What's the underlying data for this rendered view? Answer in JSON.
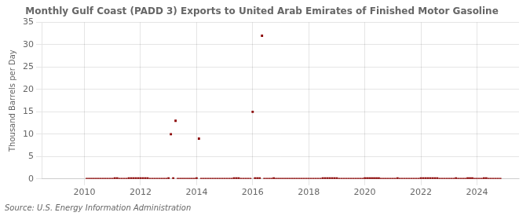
{
  "chart_data": {
    "type": "scatter",
    "title": "Monthly Gulf Coast (PADD 3) Exports to United Arab Emirates of Finished Motor Gasoline",
    "ylabel": "Thousand Barrels per Day",
    "annotations": [
      "Source: U.S. Energy Information Administration"
    ],
    "color": "#8b0000",
    "marker": "square",
    "grid": true,
    "xlim": [
      2008.5,
      2025.5
    ],
    "xticks": [
      2010,
      2012,
      2014,
      2016,
      2018,
      2020,
      2022,
      2024
    ],
    "ylim": [
      0,
      35
    ],
    "yticks": [
      0,
      5,
      10,
      15,
      20,
      25,
      30,
      35
    ],
    "x": [
      2010.083,
      2010.167,
      2010.25,
      2010.333,
      2010.417,
      2010.5,
      2010.583,
      2010.667,
      2010.75,
      2010.833,
      2010.917,
      2011.0,
      2011.083,
      2011.167,
      2011.25,
      2011.333,
      2011.417,
      2011.5,
      2011.583,
      2011.667,
      2011.75,
      2011.833,
      2011.917,
      2012.0,
      2012.083,
      2012.167,
      2012.25,
      2012.333,
      2012.417,
      2012.5,
      2012.583,
      2012.667,
      2012.75,
      2012.833,
      2012.917,
      2013.0,
      2013.083,
      2013.167,
      2013.25,
      2013.333,
      2013.417,
      2013.5,
      2013.583,
      2013.667,
      2013.75,
      2013.833,
      2013.917,
      2014.0,
      2014.083,
      2014.167,
      2014.25,
      2014.333,
      2014.417,
      2014.5,
      2014.583,
      2014.667,
      2014.75,
      2014.833,
      2014.917,
      2015.0,
      2015.083,
      2015.167,
      2015.25,
      2015.333,
      2015.417,
      2015.5,
      2015.583,
      2015.667,
      2015.75,
      2015.833,
      2015.917,
      2016.0,
      2016.083,
      2016.167,
      2016.25,
      2016.333,
      2016.417,
      2016.5,
      2016.583,
      2016.667,
      2016.75,
      2016.833,
      2016.917,
      2017.0,
      2017.083,
      2017.167,
      2017.25,
      2017.333,
      2017.417,
      2017.5,
      2017.583,
      2017.667,
      2017.75,
      2017.833,
      2017.917,
      2018.0,
      2018.083,
      2018.167,
      2018.25,
      2018.333,
      2018.417,
      2018.5,
      2018.583,
      2018.667,
      2018.75,
      2018.833,
      2018.917,
      2019.0,
      2019.083,
      2019.167,
      2019.25,
      2019.333,
      2019.417,
      2019.5,
      2019.583,
      2019.667,
      2019.75,
      2019.833,
      2019.917,
      2020.0,
      2020.083,
      2020.167,
      2020.25,
      2020.333,
      2020.417,
      2020.5,
      2020.583,
      2020.667,
      2020.75,
      2020.833,
      2020.917,
      2021.0,
      2021.083,
      2021.167,
      2021.25,
      2021.333,
      2021.417,
      2021.5,
      2021.583,
      2021.667,
      2021.75,
      2021.833,
      2021.917,
      2022.0,
      2022.083,
      2022.167,
      2022.25,
      2022.333,
      2022.417,
      2022.5,
      2022.583,
      2022.667,
      2022.75,
      2022.833,
      2022.917,
      2023.0,
      2023.083,
      2023.167,
      2023.25,
      2023.333,
      2023.417,
      2023.5,
      2023.583,
      2023.667,
      2023.75,
      2023.833,
      2023.917,
      2024.0,
      2024.083,
      2024.167,
      2024.25,
      2024.333,
      2024.417,
      2024.5,
      2024.583,
      2024.667,
      2024.75,
      2024.833
    ],
    "values": [
      0,
      0,
      0,
      0,
      0,
      0,
      0,
      0,
      0,
      0,
      0,
      0,
      0.1,
      0.1,
      0,
      0,
      0,
      0,
      0.1,
      0.1,
      0.1,
      0.1,
      0.1,
      0.1,
      0.1,
      0.1,
      0.1,
      0,
      0,
      0,
      0,
      0,
      0,
      0,
      0,
      0.1,
      10.0,
      0.1,
      13.0,
      0,
      0,
      0,
      0,
      0,
      0,
      0,
      0,
      0.1,
      9.0,
      0,
      0,
      0,
      0,
      0,
      0,
      0,
      0,
      0,
      0,
      0,
      0,
      0,
      0,
      0.1,
      0.1,
      0.1,
      0,
      0,
      0,
      0,
      0,
      15.0,
      0.1,
      0.1,
      0.1,
      32.0,
      0,
      0,
      0,
      0,
      0.1,
      0,
      0,
      0,
      0,
      0,
      0,
      0,
      0,
      0,
      0,
      0,
      0,
      0,
      0,
      0,
      0,
      0,
      0,
      0,
      0,
      0.1,
      0.1,
      0.1,
      0.1,
      0.1,
      0.1,
      0.1,
      0,
      0,
      0,
      0,
      0,
      0,
      0,
      0,
      0,
      0,
      0,
      0.1,
      0.1,
      0.1,
      0.1,
      0.1,
      0.1,
      0.1,
      0,
      0,
      0,
      0,
      0,
      0,
      0,
      0.1,
      0,
      0,
      0,
      0,
      0,
      0,
      0,
      0,
      0,
      0.1,
      0.1,
      0.1,
      0.1,
      0.1,
      0.1,
      0.1,
      0.1,
      0,
      0,
      0,
      0,
      0,
      0,
      0,
      0.1,
      0,
      0,
      0,
      0,
      0.1,
      0.1,
      0.1,
      0,
      0,
      0,
      0,
      0.1,
      0.1,
      0,
      0,
      0,
      0,
      0,
      0
    ]
  }
}
